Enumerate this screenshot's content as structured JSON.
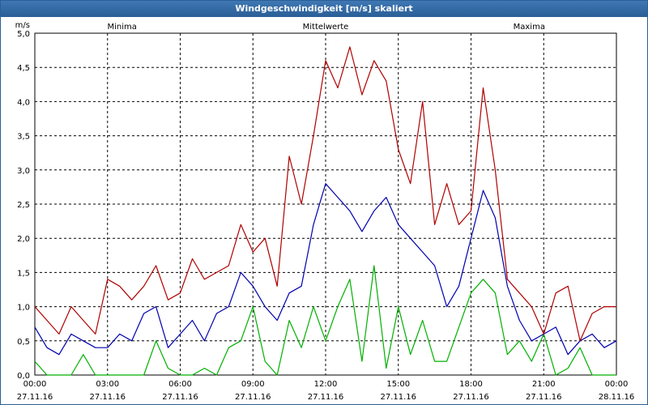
{
  "window": {
    "title": "Windgeschwindigkeit [m/s] skaliert"
  },
  "chart_data": {
    "type": "line",
    "title": "Windgeschwindigkeit [m/s] skaliert",
    "ylabel": "m/s",
    "xlabel": "",
    "ylim": [
      0,
      5.0
    ],
    "yticks": [
      "0,0",
      "0,5",
      "1,0",
      "1,5",
      "2,0",
      "2,5",
      "3,0",
      "3,5",
      "4,0",
      "4,5",
      "5,0"
    ],
    "xticks": [
      {
        "time": "00:00",
        "date": "27.11.16"
      },
      {
        "time": "03:00",
        "date": "27.11.16"
      },
      {
        "time": "06:00",
        "date": "27.11.16"
      },
      {
        "time": "09:00",
        "date": "27.11.16"
      },
      {
        "time": "12:00",
        "date": "27.11.16"
      },
      {
        "time": "15:00",
        "date": "27.11.16"
      },
      {
        "time": "18:00",
        "date": "27.11.16"
      },
      {
        "time": "21:00",
        "date": "27.11.16"
      },
      {
        "time": "00:00",
        "date": "28.11.16"
      }
    ],
    "x_range_hours": [
      0,
      24
    ],
    "grid": true,
    "series": [
      {
        "name": "Minima",
        "color": "#00b000",
        "x": [
          0,
          0.5,
          1,
          1.5,
          2,
          2.5,
          3,
          3.5,
          4,
          4.5,
          5,
          5.5,
          6,
          6.5,
          7,
          7.5,
          8,
          8.5,
          9,
          9.5,
          10,
          10.5,
          11,
          11.5,
          12,
          12.5,
          13,
          13.5,
          14,
          14.5,
          15,
          15.5,
          16,
          16.5,
          17,
          17.5,
          18,
          18.5,
          19,
          19.5,
          20,
          20.5,
          21,
          21.5,
          22,
          22.5,
          23,
          23.5,
          24
        ],
        "values": [
          0.2,
          0.0,
          0.0,
          0.0,
          0.3,
          0.0,
          0.0,
          0.0,
          0.0,
          0.0,
          0.5,
          0.1,
          0.0,
          0.0,
          0.1,
          0.0,
          0.4,
          0.5,
          1.0,
          0.2,
          0.0,
          0.8,
          0.4,
          1.0,
          0.5,
          1.0,
          1.4,
          0.2,
          1.6,
          0.1,
          1.0,
          0.3,
          0.8,
          0.2,
          0.2,
          0.7,
          1.2,
          1.4,
          1.2,
          0.3,
          0.5,
          0.2,
          0.6,
          0.0,
          0.1,
          0.4,
          0.0,
          0.0,
          0.0
        ]
      },
      {
        "name": "Mittelwerte",
        "color": "#0000b0",
        "x": [
          0,
          0.5,
          1,
          1.5,
          2,
          2.5,
          3,
          3.5,
          4,
          4.5,
          5,
          5.5,
          6,
          6.5,
          7,
          7.5,
          8,
          8.5,
          9,
          9.5,
          10,
          10.5,
          11,
          11.5,
          12,
          12.5,
          13,
          13.5,
          14,
          14.5,
          15,
          15.5,
          16,
          16.5,
          17,
          17.5,
          18,
          18.5,
          19,
          19.5,
          20,
          20.5,
          21,
          21.5,
          22,
          22.5,
          23,
          23.5,
          24
        ],
        "values": [
          0.7,
          0.4,
          0.3,
          0.6,
          0.5,
          0.4,
          0.4,
          0.6,
          0.5,
          0.9,
          1.0,
          0.4,
          0.6,
          0.8,
          0.5,
          0.9,
          1.0,
          1.5,
          1.3,
          1.0,
          0.8,
          1.2,
          1.3,
          2.2,
          2.8,
          2.6,
          2.4,
          2.1,
          2.4,
          2.6,
          2.2,
          2.0,
          1.8,
          1.6,
          1.0,
          1.3,
          2.0,
          2.7,
          2.3,
          1.3,
          0.8,
          0.5,
          0.6,
          0.7,
          0.3,
          0.5,
          0.6,
          0.4,
          0.5
        ]
      },
      {
        "name": "Maxima",
        "color": "#b00000",
        "x": [
          0,
          0.5,
          1,
          1.5,
          2,
          2.5,
          3,
          3.5,
          4,
          4.5,
          5,
          5.5,
          6,
          6.5,
          7,
          7.5,
          8,
          8.5,
          9,
          9.5,
          10,
          10.5,
          11,
          11.5,
          12,
          12.5,
          13,
          13.5,
          14,
          14.5,
          15,
          15.5,
          16,
          16.5,
          17,
          17.5,
          18,
          18.5,
          19,
          19.5,
          20,
          20.5,
          21,
          21.5,
          22,
          22.5,
          23,
          23.5,
          24
        ],
        "values": [
          1.0,
          0.8,
          0.6,
          1.0,
          0.8,
          0.6,
          1.4,
          1.3,
          1.1,
          1.3,
          1.6,
          1.1,
          1.2,
          1.7,
          1.4,
          1.5,
          1.6,
          2.2,
          1.8,
          2.0,
          1.3,
          3.2,
          2.5,
          3.5,
          4.6,
          4.2,
          4.8,
          4.1,
          4.6,
          4.3,
          3.3,
          2.8,
          4.0,
          2.2,
          2.8,
          2.2,
          2.4,
          4.2,
          3.0,
          1.4,
          1.2,
          1.0,
          0.6,
          1.2,
          1.3,
          0.5,
          0.9,
          1.0,
          1.0
        ]
      }
    ]
  }
}
